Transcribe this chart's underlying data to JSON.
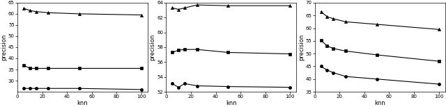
{
  "knn": [
    5,
    10,
    15,
    25,
    50,
    100
  ],
  "subplot1": {
    "ylabel": "precision",
    "xlabel": "knn",
    "ylim": [
      25,
      65
    ],
    "yticks": [
      30,
      35,
      40,
      45,
      50,
      55,
      60,
      65
    ],
    "xticks": [
      0,
      20,
      40,
      60,
      80,
      100
    ],
    "series": [
      {
        "marker": "^",
        "data": [
          62.5,
          61.5,
          61.0,
          60.5,
          60.0,
          59.5
        ]
      },
      {
        "marker": "s",
        "data": [
          37.0,
          35.5,
          35.5,
          35.5,
          35.5,
          35.5
        ]
      },
      {
        "marker": "o",
        "data": [
          26.5,
          26.5,
          26.5,
          26.5,
          26.5,
          26.0
        ]
      }
    ]
  },
  "subplot2": {
    "ylabel": "precision",
    "xlabel": "knn",
    "ylim": [
      52,
      64
    ],
    "yticks": [
      52,
      54,
      56,
      58,
      60,
      62,
      64
    ],
    "xticks": [
      0,
      20,
      40,
      60,
      80,
      100
    ],
    "series": [
      {
        "marker": "^",
        "data": [
          63.3,
          63.1,
          63.3,
          63.7,
          63.6,
          63.6
        ]
      },
      {
        "marker": "s",
        "data": [
          57.3,
          57.6,
          57.7,
          57.7,
          57.3,
          57.1
        ]
      },
      {
        "marker": "o",
        "data": [
          53.1,
          52.6,
          53.1,
          52.8,
          52.7,
          52.6
        ]
      }
    ]
  },
  "subplot3": {
    "ylabel": "precision",
    "xlabel": "knn",
    "ylim": [
      35,
      70
    ],
    "yticks": [
      35,
      40,
      45,
      50,
      55,
      60,
      65,
      70
    ],
    "xticks": [
      0,
      20,
      40,
      60,
      80,
      100
    ],
    "series": [
      {
        "marker": "^",
        "data": [
          66.5,
          64.5,
          63.7,
          62.5,
          61.5,
          59.5
        ]
      },
      {
        "marker": "s",
        "data": [
          55.3,
          53.0,
          52.0,
          51.0,
          49.5,
          47.0
        ]
      },
      {
        "marker": "o",
        "data": [
          45.0,
          43.5,
          42.5,
          41.0,
          40.0,
          38.0
        ]
      }
    ]
  },
  "line_color": "#000000",
  "marker_size": 3,
  "linewidth": 0.8,
  "tick_fontsize": 5,
  "label_fontsize": 6
}
